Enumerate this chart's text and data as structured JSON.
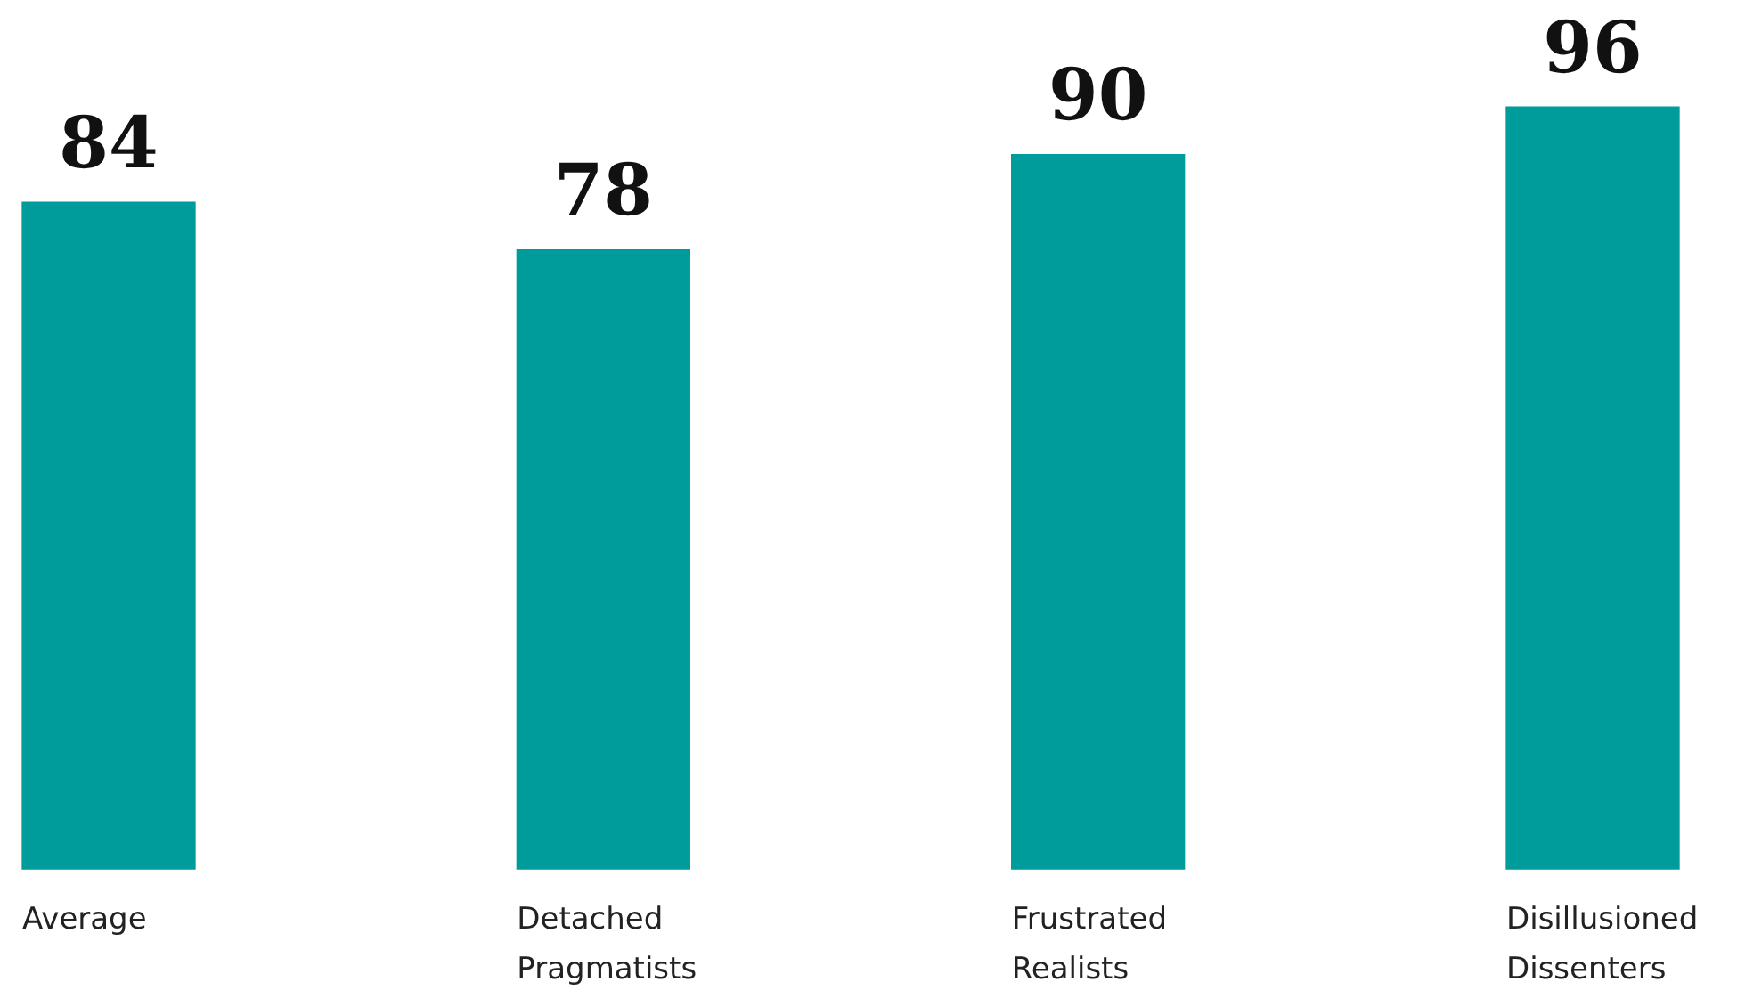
{
  "chart_data": {
    "type": "bar",
    "categories": [
      "Average",
      "Detached Pragmatists",
      "Frustrated Realists",
      "Disillusioned Dissenters"
    ],
    "values": [
      84,
      78,
      90,
      96
    ],
    "color": "#009b9b",
    "data_labels": true,
    "legend": false
  }
}
